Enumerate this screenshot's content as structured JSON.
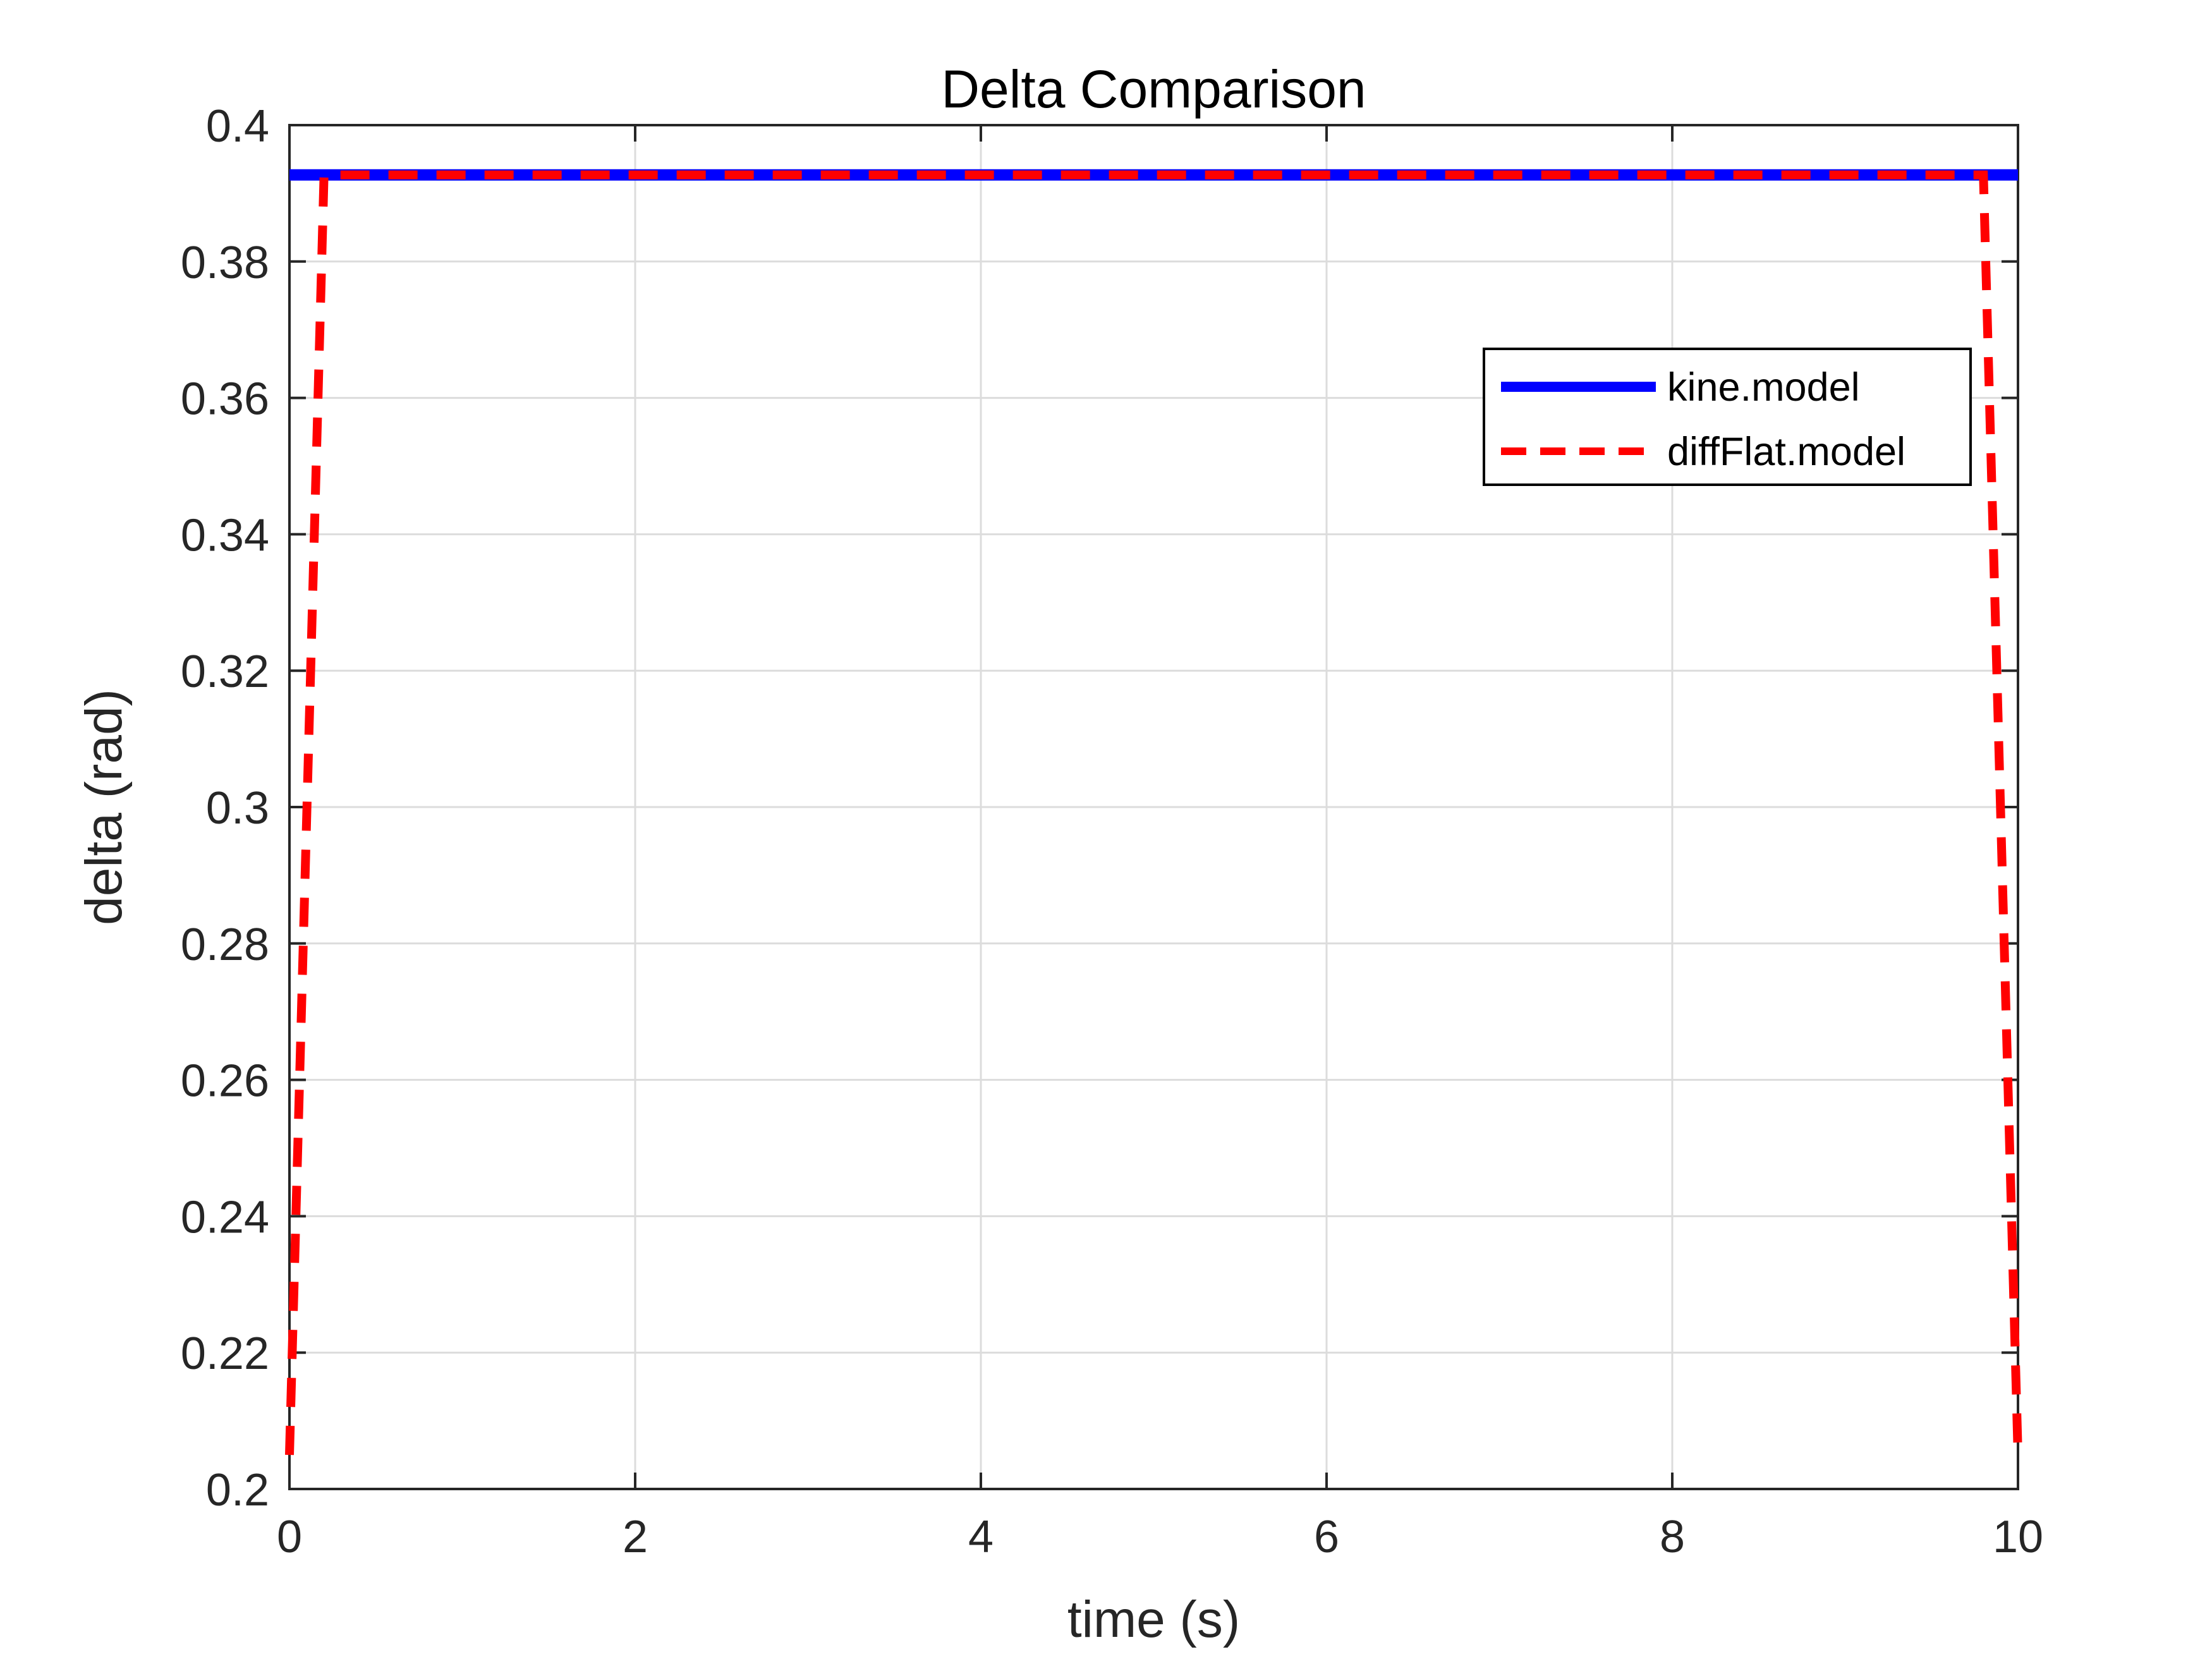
{
  "chart_data": {
    "type": "line",
    "title": "Delta Comparison",
    "xlabel": "time (s)",
    "ylabel": "delta (rad)",
    "xlim": [
      0,
      10
    ],
    "ylim": [
      0.2,
      0.4
    ],
    "xticks": [
      0,
      2,
      4,
      6,
      8,
      10
    ],
    "xtick_labels": [
      "0",
      "2",
      "4",
      "6",
      "8",
      "10"
    ],
    "yticks": [
      0.2,
      0.22,
      0.24,
      0.26,
      0.28,
      0.3,
      0.32,
      0.34,
      0.36,
      0.38,
      0.4
    ],
    "ytick_labels": [
      "0.2",
      "0.22",
      "0.24",
      "0.26",
      "0.28",
      "0.3",
      "0.32",
      "0.34",
      "0.36",
      "0.38",
      "0.4"
    ],
    "grid": true,
    "legend_position": "top-right",
    "series": [
      {
        "name": "kine.model",
        "color": "#0000ff",
        "style": "solid",
        "x": [
          0,
          10
        ],
        "y": [
          0.3927,
          0.3927
        ]
      },
      {
        "name": "diffFlat.model",
        "color": "#ff0000",
        "style": "dashed",
        "x": [
          0,
          0.2,
          0.4,
          1,
          2,
          3,
          4,
          5,
          6,
          7,
          8,
          9,
          9.6,
          9.8,
          10
        ],
        "y": [
          0.205,
          0.3927,
          0.3927,
          0.3927,
          0.3927,
          0.3927,
          0.3927,
          0.3927,
          0.3927,
          0.3927,
          0.3927,
          0.3927,
          0.3927,
          0.3927,
          0.205
        ]
      }
    ]
  }
}
